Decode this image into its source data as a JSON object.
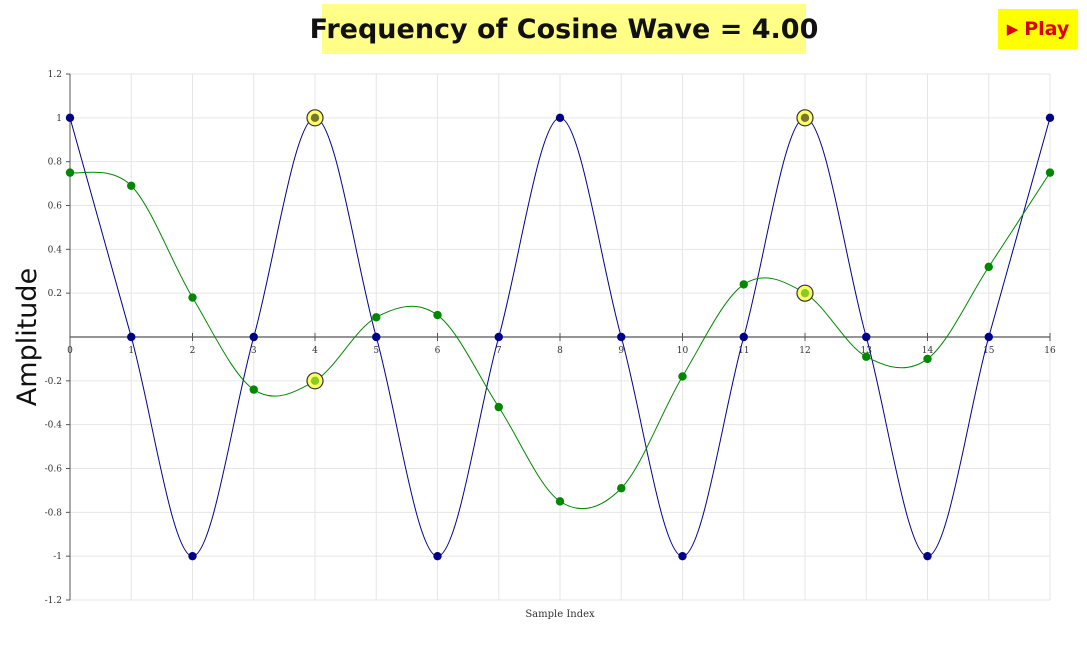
{
  "header": {
    "title": "Frequency of Cosine Wave = 4.00",
    "play_icon": "▶",
    "play_label": "Play"
  },
  "colors": {
    "blue_series": "#000088",
    "green_series": "#008800",
    "highlight_ring": "#ffff66",
    "grid": "#e6e6e6",
    "axis": "#555555"
  },
  "chart_data": {
    "type": "scatter",
    "title": "",
    "xlabel": "Sample Index",
    "ylabel": "Amplitude",
    "xlim": [
      0,
      16
    ],
    "ylim": [
      -1.2,
      1.2
    ],
    "grid": true,
    "x_ticks": [
      "0",
      "1",
      "2",
      "3",
      "4",
      "5",
      "6",
      "7",
      "8",
      "9",
      "10",
      "11",
      "12",
      "13",
      "14",
      "15",
      "16"
    ],
    "y_ticks": [
      "1.2",
      "1",
      "0.8",
      "0.6",
      "0.4",
      "0.2",
      "-0.2",
      "-0.4",
      "-0.6",
      "-0.8",
      "-1",
      "-1.2"
    ],
    "series": [
      {
        "color": "#000088",
        "x": [
          0,
          1,
          2,
          3,
          4,
          5,
          6,
          7,
          8,
          9,
          10,
          11,
          12,
          13,
          14,
          15,
          16
        ],
        "values": [
          1,
          0,
          -1,
          0,
          1,
          0,
          -1,
          0,
          1,
          0,
          -1,
          0,
          1,
          0,
          -1,
          0,
          1
        ]
      },
      {
        "color": "#008800",
        "x": [
          0,
          1,
          2,
          3,
          4,
          5,
          6,
          7,
          8,
          9,
          10,
          11,
          12,
          13,
          14,
          15,
          16
        ],
        "values": [
          0.75,
          0.69,
          0.18,
          -0.24,
          -0.2,
          0.09,
          0.1,
          -0.32,
          -0.75,
          -0.69,
          -0.18,
          0.24,
          0.2,
          -0.09,
          -0.1,
          0.32,
          0.75
        ]
      }
    ],
    "highlighted_points": [
      {
        "x": 4,
        "y": 1
      },
      {
        "x": 12,
        "y": 1
      },
      {
        "x": 4,
        "y": -0.2
      },
      {
        "x": 12,
        "y": 0.2
      }
    ]
  }
}
